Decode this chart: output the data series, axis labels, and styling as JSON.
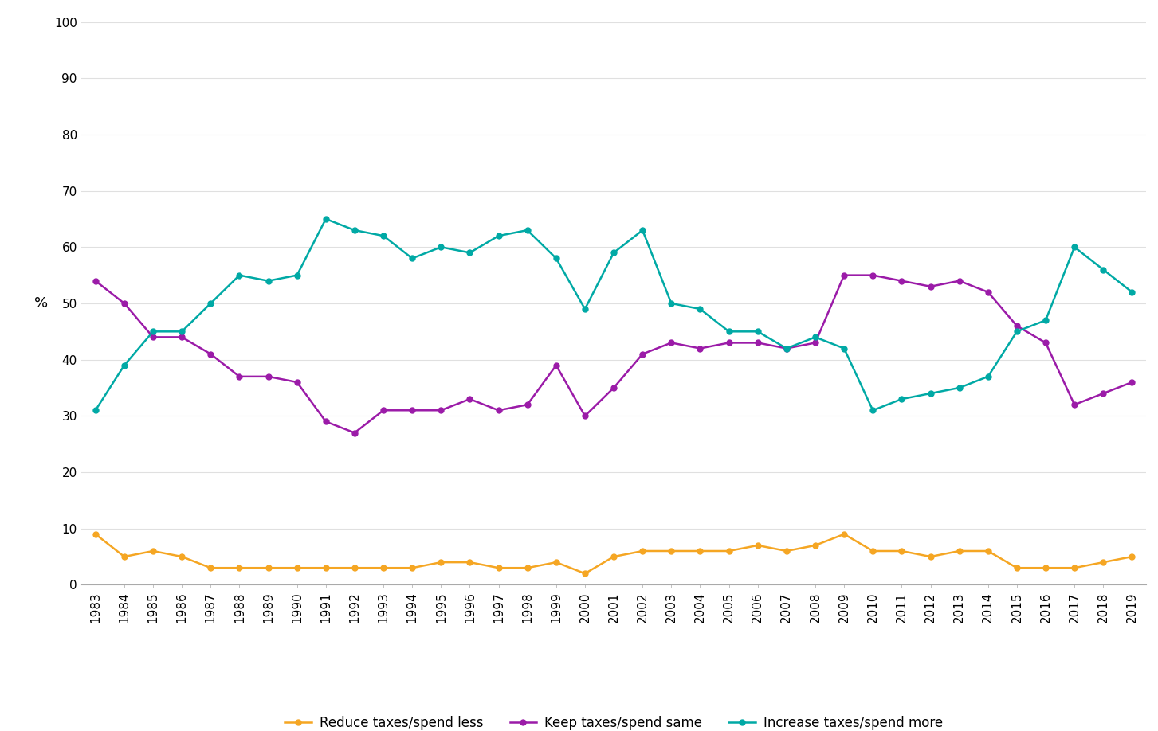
{
  "years": [
    1983,
    1984,
    1985,
    1986,
    1987,
    1988,
    1989,
    1990,
    1991,
    1992,
    1993,
    1994,
    1995,
    1996,
    1997,
    1998,
    1999,
    2000,
    2001,
    2002,
    2003,
    2004,
    2005,
    2006,
    2007,
    2008,
    2009,
    2010,
    2011,
    2012,
    2013,
    2014,
    2015,
    2016,
    2017,
    2018,
    2019
  ],
  "reduce": [
    9,
    5,
    6,
    5,
    3,
    3,
    3,
    3,
    3,
    3,
    3,
    3,
    4,
    4,
    3,
    3,
    4,
    2,
    5,
    6,
    6,
    6,
    6,
    7,
    6,
    7,
    9,
    6,
    6,
    5,
    6,
    6,
    3,
    3,
    3,
    4,
    5
  ],
  "keep": [
    54,
    50,
    44,
    44,
    41,
    37,
    37,
    36,
    29,
    27,
    31,
    31,
    31,
    33,
    31,
    32,
    39,
    30,
    35,
    41,
    43,
    42,
    43,
    43,
    42,
    43,
    55,
    55,
    54,
    53,
    54,
    52,
    46,
    43,
    32,
    34,
    36
  ],
  "increase": [
    31,
    39,
    45,
    45,
    50,
    55,
    54,
    55,
    65,
    63,
    62,
    58,
    60,
    59,
    62,
    63,
    58,
    49,
    59,
    63,
    50,
    49,
    45,
    45,
    42,
    44,
    42,
    31,
    33,
    34,
    35,
    37,
    45,
    47,
    60,
    56,
    52
  ],
  "reduce_color": "#F5A623",
  "keep_color": "#9B1BA8",
  "increase_color": "#00A9A5",
  "reduce_label": "Reduce taxes/spend less",
  "keep_label": "Keep taxes/spend same",
  "increase_label": "Increase taxes/spend more",
  "ylabel": "%",
  "ylim": [
    0,
    100
  ],
  "yticks": [
    0,
    10,
    20,
    30,
    40,
    50,
    60,
    70,
    80,
    90,
    100
  ],
  "background_color": "#FFFFFF",
  "marker_size": 5,
  "line_width": 1.8,
  "grid_color": "#E0E0E0",
  "spine_color": "#AAAAAA",
  "tick_fontsize": 11,
  "ylabel_fontsize": 13
}
